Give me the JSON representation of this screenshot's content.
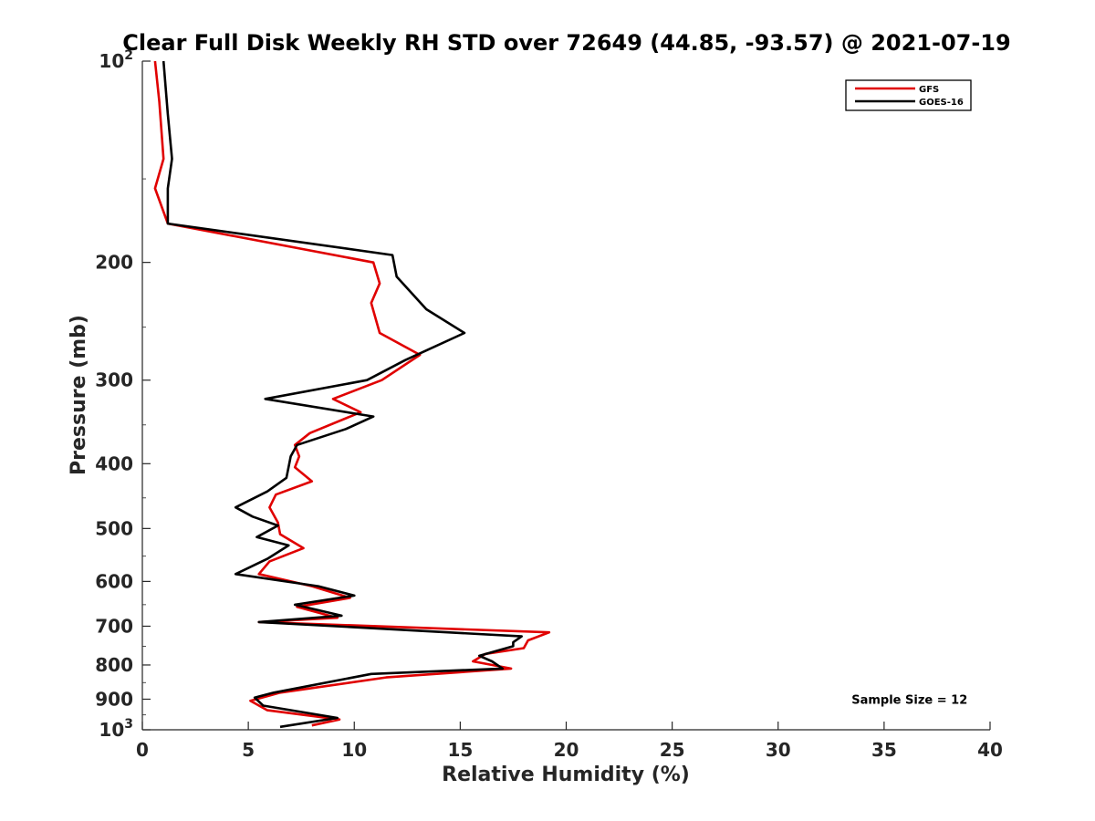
{
  "chart_data": {
    "type": "line",
    "title": "Clear Full Disk Weekly RH STD over 72649 (44.85, -93.57) @ 2021-07-19",
    "xlabel": "Relative Humidity (%)",
    "ylabel": "Pressure (mb)",
    "xlim": [
      0,
      40
    ],
    "ylim": [
      100,
      1000
    ],
    "y_scale": "log",
    "y_reversed": true,
    "x_ticks": [
      0,
      5,
      10,
      15,
      20,
      25,
      30,
      35,
      40
    ],
    "y_ticks": [
      {
        "value": 100,
        "label": "10",
        "sup": "2"
      },
      {
        "value": 200,
        "label": "200",
        "sup": ""
      },
      {
        "value": 300,
        "label": "300",
        "sup": ""
      },
      {
        "value": 400,
        "label": "400",
        "sup": ""
      },
      {
        "value": 500,
        "label": "500",
        "sup": ""
      },
      {
        "value": 600,
        "label": "600",
        "sup": ""
      },
      {
        "value": 700,
        "label": "700",
        "sup": ""
      },
      {
        "value": 800,
        "label": "800",
        "sup": ""
      },
      {
        "value": 900,
        "label": "900",
        "sup": ""
      },
      {
        "value": 1000,
        "label": "10",
        "sup": "3"
      }
    ],
    "grid": false,
    "legend_position": "top-right",
    "series": [
      {
        "name": "GFS",
        "color": "#e00000",
        "points": [
          [
            0.6,
            100
          ],
          [
            0.8,
            115
          ],
          [
            1.0,
            140
          ],
          [
            0.6,
            155
          ],
          [
            1.2,
            175
          ],
          [
            10.9,
            200
          ],
          [
            11.2,
            215
          ],
          [
            10.8,
            230
          ],
          [
            11.2,
            255
          ],
          [
            13.1,
            275
          ],
          [
            11.3,
            300
          ],
          [
            9.0,
            320
          ],
          [
            10.3,
            335
          ],
          [
            7.9,
            360
          ],
          [
            7.2,
            375
          ],
          [
            7.4,
            390
          ],
          [
            7.2,
            405
          ],
          [
            8.0,
            425
          ],
          [
            6.3,
            445
          ],
          [
            6.0,
            465
          ],
          [
            6.4,
            490
          ],
          [
            6.5,
            510
          ],
          [
            7.6,
            535
          ],
          [
            6.0,
            560
          ],
          [
            5.5,
            585
          ],
          [
            8.0,
            610
          ],
          [
            9.8,
            635
          ],
          [
            7.3,
            655
          ],
          [
            9.2,
            680
          ],
          [
            5.5,
            690
          ],
          [
            19.2,
            715
          ],
          [
            18.2,
            735
          ],
          [
            18.0,
            755
          ],
          [
            16.2,
            770
          ],
          [
            15.6,
            790
          ],
          [
            17.4,
            810
          ],
          [
            11.5,
            835
          ],
          [
            6.5,
            880
          ],
          [
            5.1,
            905
          ],
          [
            5.9,
            935
          ],
          [
            9.3,
            965
          ],
          [
            8.0,
            985
          ]
        ]
      },
      {
        "name": "GOES-16",
        "color": "#000000",
        "points": [
          [
            1.0,
            100
          ],
          [
            1.2,
            120
          ],
          [
            1.4,
            140
          ],
          [
            1.2,
            155
          ],
          [
            1.2,
            175
          ],
          [
            11.8,
            195
          ],
          [
            12.0,
            210
          ],
          [
            13.4,
            235
          ],
          [
            15.2,
            255
          ],
          [
            12.4,
            280
          ],
          [
            10.6,
            300
          ],
          [
            5.8,
            320
          ],
          [
            10.9,
            340
          ],
          [
            9.6,
            355
          ],
          [
            7.3,
            375
          ],
          [
            7.0,
            390
          ],
          [
            6.8,
            420
          ],
          [
            5.9,
            440
          ],
          [
            4.4,
            465
          ],
          [
            5.2,
            480
          ],
          [
            6.4,
            495
          ],
          [
            5.4,
            515
          ],
          [
            6.9,
            530
          ],
          [
            5.9,
            555
          ],
          [
            4.4,
            585
          ],
          [
            8.3,
            610
          ],
          [
            10.0,
            630
          ],
          [
            7.2,
            650
          ],
          [
            9.4,
            675
          ],
          [
            5.5,
            690
          ],
          [
            17.9,
            725
          ],
          [
            17.5,
            740
          ],
          [
            17.5,
            750
          ],
          [
            15.9,
            775
          ],
          [
            16.5,
            790
          ],
          [
            17.0,
            810
          ],
          [
            10.8,
            825
          ],
          [
            6.2,
            880
          ],
          [
            5.3,
            895
          ],
          [
            5.7,
            920
          ],
          [
            9.2,
            960
          ],
          [
            6.5,
            990
          ]
        ]
      }
    ],
    "annotations": [
      {
        "text": "Sample Size = 12",
        "x": 36.2,
        "y": 900
      }
    ]
  }
}
